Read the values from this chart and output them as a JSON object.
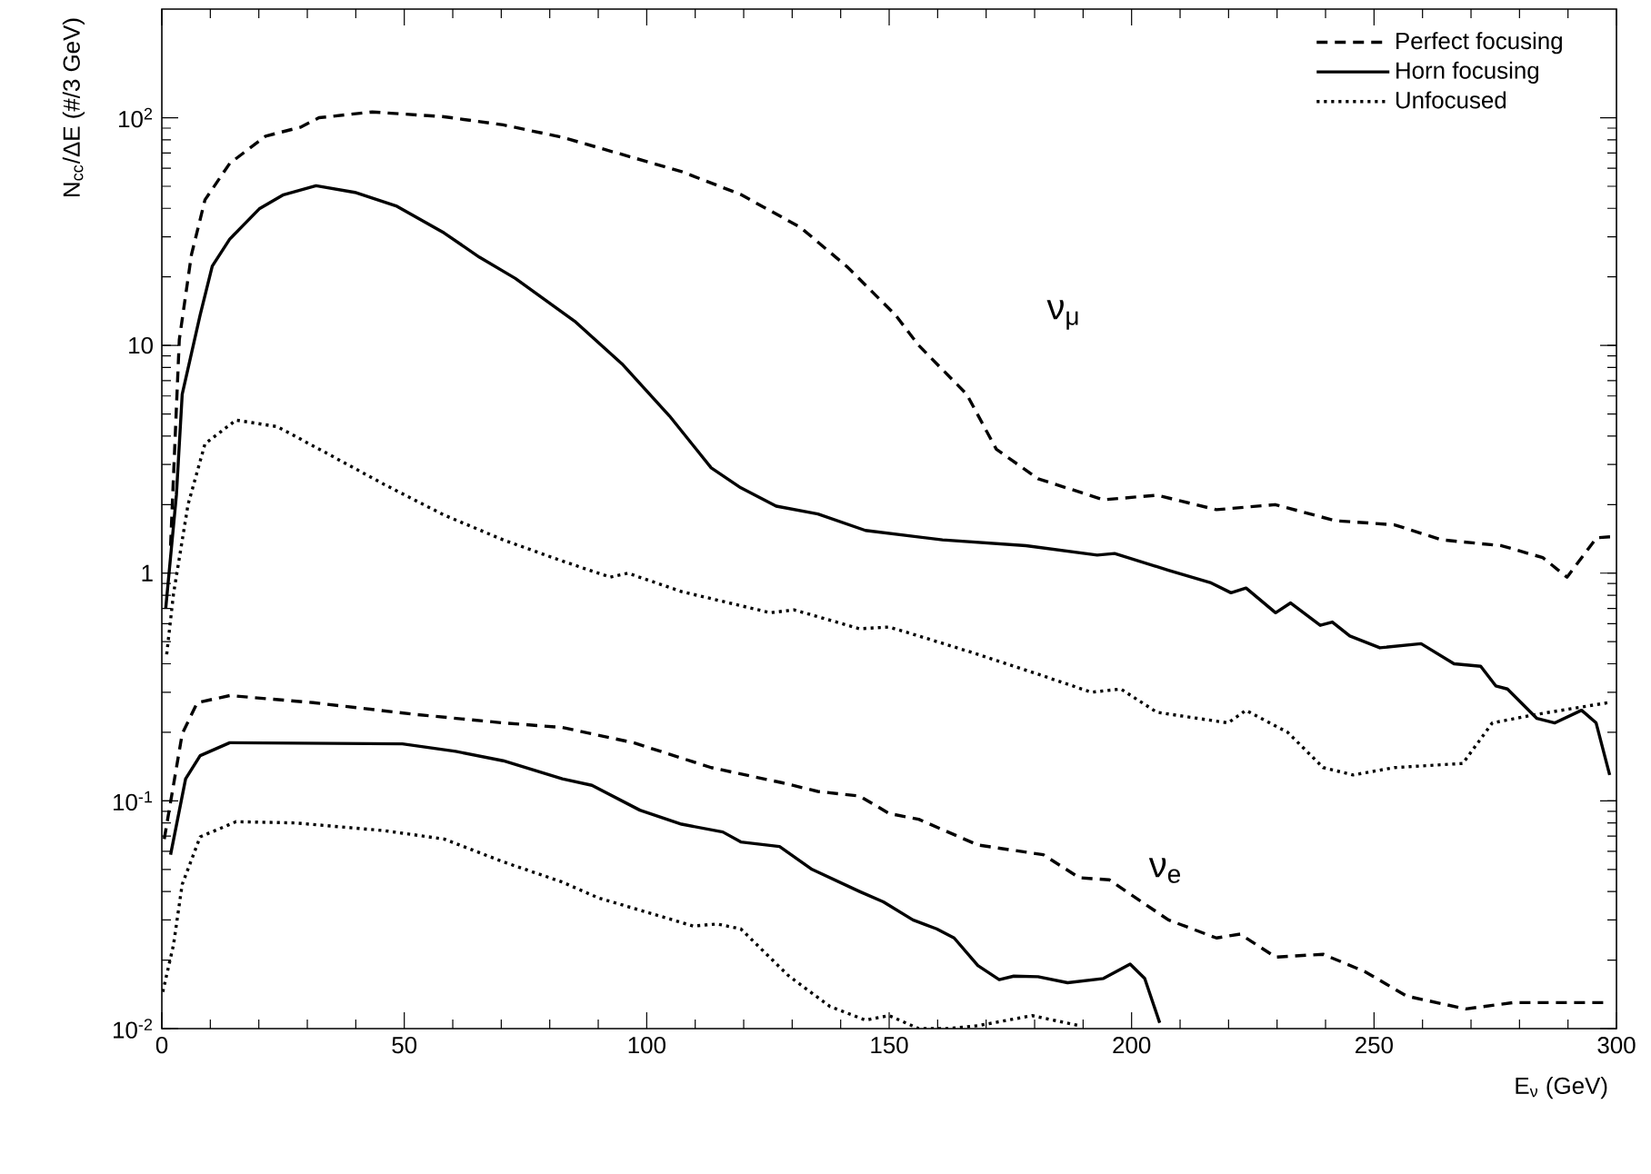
{
  "chart_data": {
    "type": "line",
    "xlabel": "E$_{ν}$ (GeV)",
    "ylabel": "N$_{cc}$/ΔE (#/3 GeV)",
    "log": "y",
    "xlim": [
      0,
      300
    ],
    "ylim": [
      0.01,
      300
    ],
    "xticks": [
      0,
      50,
      100,
      150,
      200,
      250,
      300
    ],
    "yticks": [
      {
        "value": 0.01,
        "label": "10$^{-2}$"
      },
      {
        "value": 0.1,
        "label": "10$^{-1}$"
      },
      {
        "value": 1,
        "label": "1"
      },
      {
        "value": 10,
        "label": "10"
      },
      {
        "value": 100,
        "label": "10$^{2}$"
      }
    ],
    "legend": "top right",
    "grid": false,
    "marker": "none",
    "annotations": [
      "ν$_{μ}$",
      "ν$_{e}$"
    ],
    "series": [
      {
        "name": "Perfect focusing",
        "color": "#000000",
        "line_style": "dashed",
        "x": [
          1.8,
          3.6,
          6.1,
          8.9,
          14,
          21.4,
          28.7,
          32.4,
          43.4,
          58.2,
          70.4,
          82.6,
          94.9,
          107.2,
          119.4,
          131.7,
          141.5,
          151.3,
          156.1,
          166,
          172.1,
          180.7,
          194.2,
          205.2,
          217.5,
          229.6,
          242,
          254.2,
          264,
          276.3,
          284.8,
          289.8,
          295.9,
          300
        ],
        "values": [
          1.32,
          10.6,
          25,
          43.6,
          63,
          83,
          91,
          100,
          106,
          101,
          93,
          82,
          69,
          58,
          46,
          33,
          22,
          13.6,
          10,
          6.1,
          3.5,
          2.6,
          2.1,
          2.2,
          1.9,
          2.0,
          1.7,
          1.63,
          1.4,
          1.32,
          1.17,
          0.96,
          1.43,
          1.45
        ]
      },
      {
        "name": "Horn focusing",
        "color": "#000000",
        "line_style": "solid",
        "x": [
          0.8,
          3,
          4.2,
          7.9,
          10.4,
          14,
          20.1,
          25.1,
          31.8,
          39.8,
          48.3,
          58.2,
          65.5,
          72.9,
          85.1,
          94.9,
          104.7,
          113.3,
          119.4,
          126.7,
          135.3,
          145.1,
          161,
          178.2,
          192.9,
          196.5,
          207.6,
          216.2,
          220.5,
          223.6,
          229.7,
          232.8,
          238.9,
          241.4,
          245,
          251.2,
          259.7,
          266.5,
          272,
          275.1,
          277.5,
          283.6,
          287.3,
          292.8,
          295.8,
          298.6
        ],
        "values": [
          0.7,
          2.2,
          6.1,
          13.6,
          22.3,
          29.3,
          39.8,
          45.9,
          50.3,
          47,
          41,
          31.2,
          24.4,
          19.7,
          12.8,
          8.3,
          4.9,
          2.9,
          2.37,
          1.97,
          1.82,
          1.54,
          1.4,
          1.32,
          1.2,
          1.22,
          1.03,
          0.91,
          0.82,
          0.86,
          0.67,
          0.74,
          0.59,
          0.61,
          0.53,
          0.47,
          0.49,
          0.4,
          0.39,
          0.32,
          0.31,
          0.23,
          0.22,
          0.25,
          0.22,
          0.13
        ]
      },
      {
        "name": "Unfocused",
        "color": "#000000",
        "line_style": "dotted",
        "x": [
          1,
          2.4,
          5.4,
          8.9,
          15.3,
          23.8,
          33.6,
          45.9,
          58.2,
          70.4,
          82.6,
          92.5,
          96.1,
          107.2,
          125.5,
          130.4,
          143.9,
          150,
          156.1,
          168.3,
          180.7,
          191.7,
          197.8,
          205.2,
          219.9,
          223.6,
          232.2,
          239.5,
          245.7,
          254.2,
          268.3,
          274.4,
          283.6,
          298.3
        ],
        "values": [
          0.44,
          0.81,
          2.0,
          3.7,
          4.7,
          4.4,
          3.4,
          2.45,
          1.8,
          1.4,
          1.13,
          0.96,
          1.0,
          0.83,
          0.67,
          0.69,
          0.57,
          0.58,
          0.53,
          0.44,
          0.36,
          0.3,
          0.31,
          0.245,
          0.22,
          0.25,
          0.2,
          0.14,
          0.13,
          0.14,
          0.146,
          0.22,
          0.24,
          0.27
        ]
      },
      {
        "color": "#000000",
        "line_style": "dashed",
        "x": [
          0.5,
          4.2,
          7.3,
          14,
          31.2,
          52,
          70.4,
          82.6,
          97.3,
          113.3,
          128,
          135.3,
          143.9,
          150,
          156.1,
          168.3,
          181.8,
          189.2,
          195.4,
          207.6,
          217.5,
          222.4,
          229.7,
          239.5,
          248.1,
          256.7,
          268.9,
          278.7,
          298.3
        ],
        "values": [
          0.068,
          0.197,
          0.27,
          0.29,
          0.27,
          0.24,
          0.22,
          0.21,
          0.18,
          0.14,
          0.12,
          0.11,
          0.105,
          0.088,
          0.083,
          0.064,
          0.058,
          0.046,
          0.045,
          0.03,
          0.025,
          0.026,
          0.0206,
          0.0212,
          0.0178,
          0.0139,
          0.0122,
          0.013,
          0.013
        ]
      },
      {
        "color": "#000000",
        "line_style": "solid",
        "x": [
          1.8,
          4.9,
          7.9,
          14,
          49.6,
          60.6,
          70.4,
          82.6,
          88.7,
          98.6,
          107.2,
          115.7,
          119.4,
          127.4,
          134.1,
          143.9,
          148.8,
          154.9,
          159.8,
          163.4,
          168.3,
          172.7,
          175.7,
          180.7,
          186.8,
          194.2,
          199.7,
          202.7,
          205.8
        ],
        "values": [
          0.058,
          0.125,
          0.158,
          0.18,
          0.178,
          0.165,
          0.15,
          0.125,
          0.117,
          0.091,
          0.079,
          0.073,
          0.066,
          0.063,
          0.05,
          0.04,
          0.036,
          0.03,
          0.0274,
          0.025,
          0.0189,
          0.0164,
          0.017,
          0.0169,
          0.0159,
          0.0166,
          0.0192,
          0.0166,
          0.0106
        ]
      },
      {
        "color": "#000000",
        "line_style": "dotted",
        "x": [
          0.2,
          2.4,
          4.2,
          7.9,
          15.3,
          27.5,
          45.9,
          58.2,
          70.4,
          82.6,
          90,
          101,
          109.6,
          114.5,
          119.4,
          129.2,
          137.8,
          145.1,
          150,
          156.1,
          162,
          168.3,
          179.5,
          189.2
        ],
        "values": [
          0.0145,
          0.0233,
          0.043,
          0.0695,
          0.081,
          0.08,
          0.074,
          0.068,
          0.054,
          0.044,
          0.0375,
          0.032,
          0.0282,
          0.0288,
          0.0274,
          0.0171,
          0.0125,
          0.0109,
          0.0114,
          0.01,
          0.01,
          0.0103,
          0.0114,
          0.0103
        ]
      }
    ]
  }
}
